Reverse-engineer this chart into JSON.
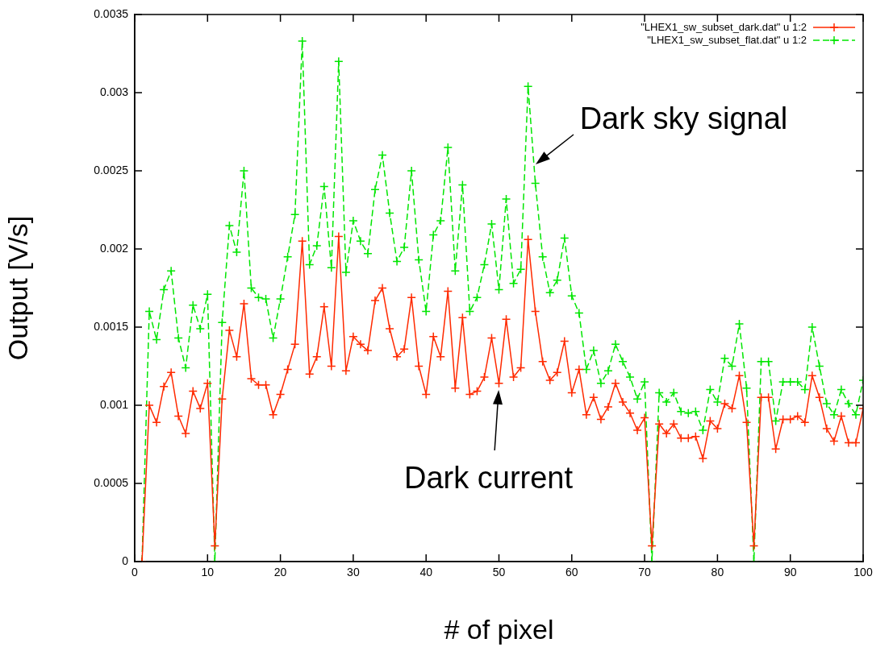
{
  "chart_data": {
    "type": "line",
    "xlabel": "# of pixel",
    "ylabel": "Output [V/s]",
    "x": [
      1,
      2,
      3,
      4,
      5,
      6,
      7,
      8,
      9,
      10,
      11,
      12,
      13,
      14,
      15,
      16,
      17,
      18,
      19,
      20,
      21,
      22,
      23,
      24,
      25,
      26,
      27,
      28,
      29,
      30,
      31,
      32,
      33,
      34,
      35,
      36,
      37,
      38,
      39,
      40,
      41,
      42,
      43,
      44,
      45,
      46,
      47,
      48,
      49,
      50,
      51,
      52,
      53,
      54,
      55,
      56,
      57,
      58,
      59,
      60,
      61,
      62,
      63,
      64,
      65,
      66,
      67,
      68,
      69,
      70,
      71,
      72,
      73,
      74,
      75,
      76,
      77,
      78,
      79,
      80,
      81,
      82,
      83,
      84,
      85,
      86,
      87,
      88,
      89,
      90,
      91,
      92,
      93,
      94,
      95,
      96,
      97,
      98,
      99,
      100
    ],
    "series": [
      {
        "name": "\"LHEX1_sw_subset_dark.dat\" u 1:2",
        "color": "#ff2a00",
        "marker": "cross",
        "line_style": "solid",
        "values": [
          0,
          0.001,
          0.00089,
          0.00112,
          0.00121,
          0.00093,
          0.00082,
          0.00109,
          0.00098,
          0.00114,
          0.0001,
          0.00104,
          0.00148,
          0.00131,
          0.00165,
          0.00117,
          0.00113,
          0.00113,
          0.00094,
          0.00107,
          0.00123,
          0.00139,
          0.00205,
          0.0012,
          0.00131,
          0.00163,
          0.00125,
          0.00208,
          0.00122,
          0.00144,
          0.00139,
          0.00135,
          0.00167,
          0.00175,
          0.00149,
          0.00131,
          0.00136,
          0.00169,
          0.00125,
          0.00107,
          0.00144,
          0.00131,
          0.00173,
          0.00111,
          0.00156,
          0.00107,
          0.00109,
          0.00118,
          0.00143,
          0.00114,
          0.00155,
          0.00118,
          0.00124,
          0.00206,
          0.0016,
          0.00128,
          0.00116,
          0.00121,
          0.00141,
          0.00108,
          0.00123,
          0.00094,
          0.00105,
          0.00091,
          0.00099,
          0.00114,
          0.00102,
          0.00095,
          0.00084,
          0.00092,
          0.0001,
          0.00088,
          0.00082,
          0.00088,
          0.00079,
          0.00079,
          0.0008,
          0.00066,
          0.0009,
          0.00085,
          0.00101,
          0.00098,
          0.00119,
          0.00089,
          0.0001,
          0.00105,
          0.00105,
          0.00072,
          0.00091,
          0.00091,
          0.00093,
          0.00089,
          0.00119,
          0.00105,
          0.00085,
          0.00077,
          0.00093,
          0.00076,
          0.00076,
          0.00098
        ]
      },
      {
        "name": "\"LHEX1_sw_subset_flat.dat\" u 1:2",
        "color": "#00e600",
        "marker": "cross",
        "line_style": "dashed",
        "values": [
          0,
          0.0016,
          0.00142,
          0.00174,
          0.00186,
          0.00143,
          0.00124,
          0.00164,
          0.00149,
          0.00171,
          0,
          0.00153,
          0.00215,
          0.00198,
          0.0025,
          0.00175,
          0.00169,
          0.00168,
          0.00143,
          0.00168,
          0.00195,
          0.00222,
          0.00333,
          0.0019,
          0.00202,
          0.0024,
          0.00188,
          0.0032,
          0.00185,
          0.00218,
          0.00205,
          0.00197,
          0.00238,
          0.0026,
          0.00223,
          0.00192,
          0.00201,
          0.0025,
          0.00193,
          0.0016,
          0.00209,
          0.00218,
          0.00265,
          0.00186,
          0.00241,
          0.0016,
          0.00169,
          0.0019,
          0.00216,
          0.00174,
          0.00232,
          0.00178,
          0.00187,
          0.00304,
          0.00242,
          0.00195,
          0.00172,
          0.0018,
          0.00207,
          0.0017,
          0.00159,
          0.00123,
          0.00135,
          0.00114,
          0.00122,
          0.00139,
          0.00128,
          0.00118,
          0.00104,
          0.00115,
          0,
          0.00108,
          0.00102,
          0.00108,
          0.00096,
          0.00095,
          0.00096,
          0.00084,
          0.0011,
          0.00102,
          0.0013,
          0.00125,
          0.00152,
          0.00111,
          0,
          0.00128,
          0.00128,
          0.0009,
          0.00115,
          0.00115,
          0.00115,
          0.0011,
          0.0015,
          0.00125,
          0.00101,
          0.00094,
          0.0011,
          0.00101,
          0.00094,
          0.00116
        ]
      }
    ],
    "xlim": [
      0,
      100
    ],
    "xticks": [
      0,
      10,
      20,
      30,
      40,
      50,
      60,
      70,
      80,
      90,
      100
    ],
    "ylim": [
      0,
      0.0035
    ],
    "yticks": [
      0,
      0.0005,
      0.001,
      0.0015,
      0.002,
      0.0025,
      0.003,
      0.0035
    ],
    "grid": false,
    "legend": "top right",
    "annotations": [
      {
        "text": "Dark sky signal",
        "x": 55,
        "y": 0.00254
      },
      {
        "text": "Dark current",
        "x": 50,
        "y": 0.0011
      }
    ]
  }
}
